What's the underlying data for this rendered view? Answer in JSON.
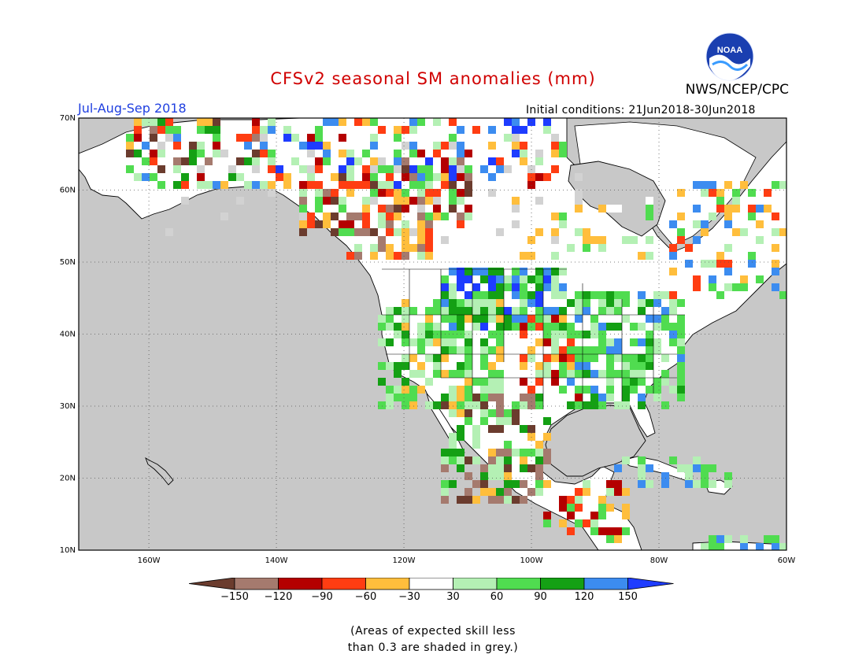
{
  "title": "CFSv2 seasonal SM anomalies (mm)",
  "agency": "NWS/NCEP/CPC",
  "logo_text": "NOAA",
  "period": "Jul-Aug-Sep 2018",
  "initial_conditions": "Initial conditions: 21Jun2018-30Jun2018",
  "map": {
    "lat_labels": [
      "70N",
      "60N",
      "50N",
      "40N",
      "30N",
      "20N",
      "10N"
    ],
    "lon_labels": [
      "160W",
      "140W",
      "120W",
      "100W",
      "80W",
      "60W"
    ],
    "lon_range": [
      -171,
      -60
    ],
    "lat_range": [
      10,
      70
    ],
    "colors": {
      "ocean": "#c8c8c8",
      "land": "#ffffff"
    }
  },
  "legend": {
    "tick_labels": [
      "-150",
      "-120",
      "-90",
      "-60",
      "-30",
      "30",
      "60",
      "90",
      "120",
      "150"
    ],
    "colors": [
      "#6b3c2e",
      "#a57a6e",
      "#b40000",
      "#ff3d12",
      "#ffbe3c",
      "#ffffff",
      "#b4f0b4",
      "#50dc50",
      "#14a014",
      "#3c8cf0",
      "#1e3cff"
    ]
  },
  "note": "(Areas of expected skill less\nthan 0.3 are shaded in grey.)"
}
